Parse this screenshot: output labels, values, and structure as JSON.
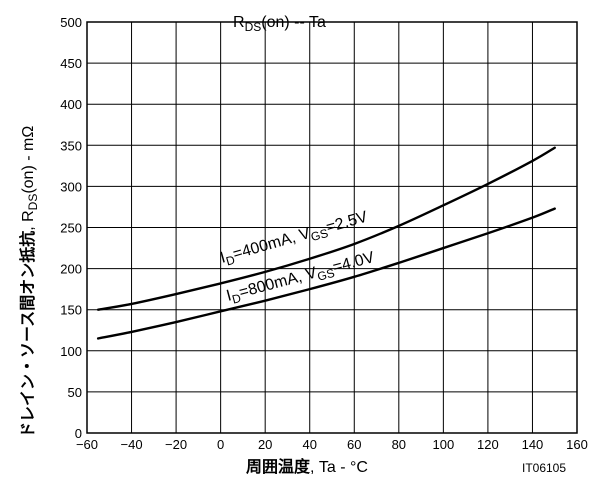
{
  "chart_data": {
    "type": "line",
    "title": {
      "main": "R",
      "sub": "DS",
      "rest": "(on)  --  Ta"
    },
    "xlabel": {
      "bold": "周囲温度",
      "rest": ", Ta - °C"
    },
    "ylabel": {
      "bold": "ドレイン・ソース間オン抵抗",
      "rest1": ", R",
      "sub": "DS",
      "rest2": "(on) - mΩ"
    },
    "code": "IT06105",
    "xlim": [
      -60,
      160
    ],
    "ylim": [
      0,
      500
    ],
    "x_ticks": [
      -60,
      -40,
      -20,
      0,
      20,
      40,
      60,
      80,
      100,
      120,
      140,
      160
    ],
    "y_ticks": [
      0,
      50,
      100,
      150,
      200,
      250,
      300,
      350,
      400,
      450,
      500
    ],
    "grid": true,
    "series": [
      {
        "label": {
          "p1": "I",
          "s1": "D",
          "p2": "=400mA, V",
          "s2": "GS",
          "p3": "=2.5V"
        },
        "x": [
          -55,
          -40,
          -20,
          0,
          20,
          40,
          60,
          80,
          100,
          120,
          140,
          150
        ],
        "y": [
          150,
          157,
          169,
          182,
          196,
          212,
          230,
          252,
          277,
          303,
          331,
          347
        ]
      },
      {
        "label": {
          "p1": "I",
          "s1": "D",
          "p2": "=800mA, V",
          "s2": "GS",
          "p3": "=4.0V"
        },
        "x": [
          -55,
          -40,
          -20,
          0,
          20,
          40,
          60,
          80,
          100,
          120,
          140,
          150
        ],
        "y": [
          115,
          123,
          135,
          148,
          161,
          175,
          190,
          207,
          225,
          243,
          262,
          273
        ]
      }
    ]
  }
}
